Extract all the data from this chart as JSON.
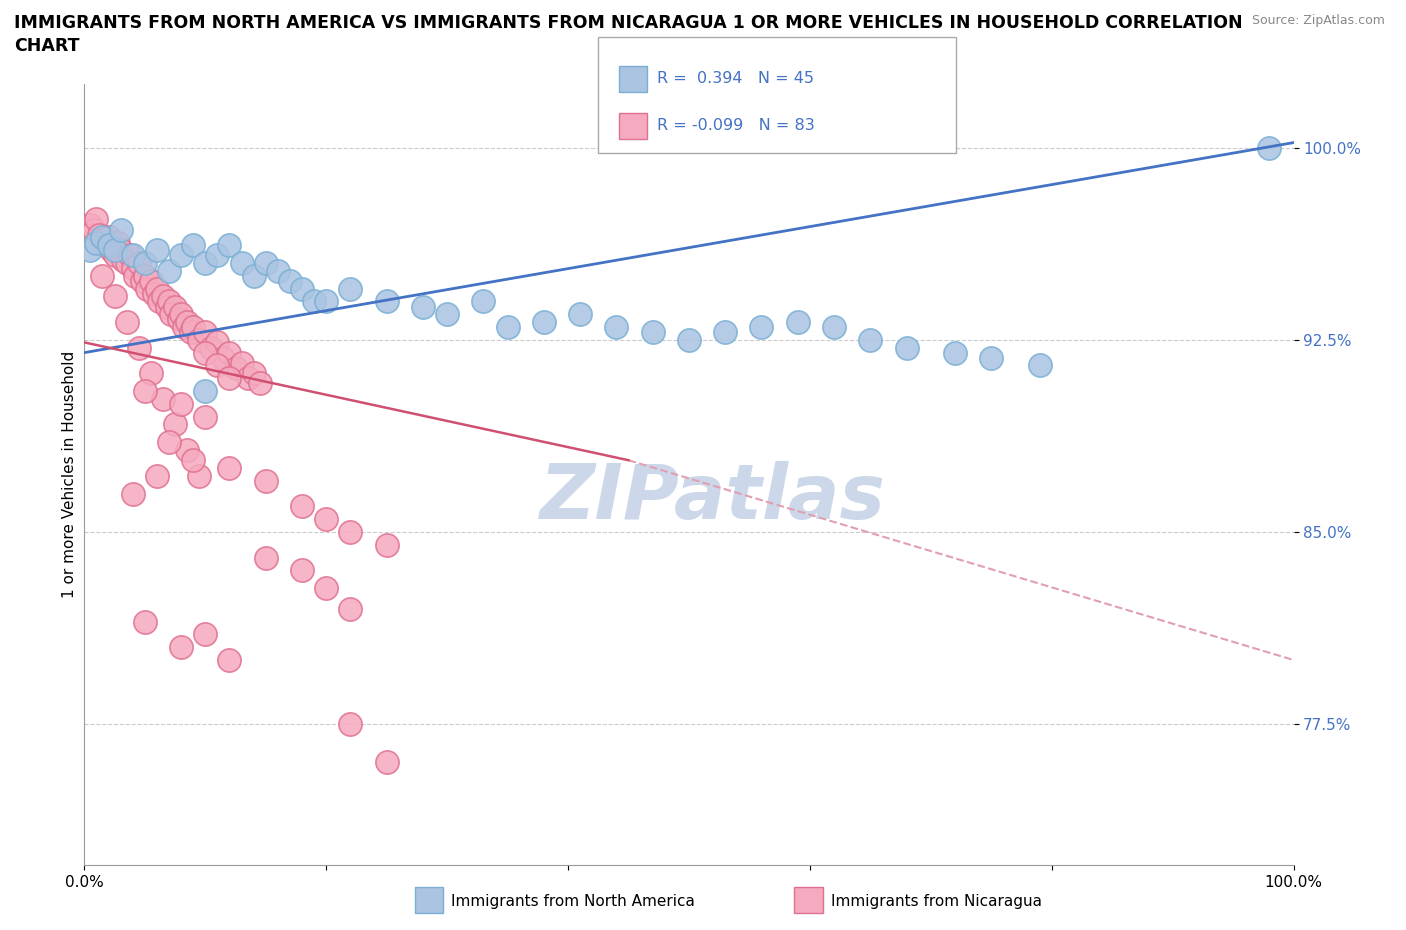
{
  "title_line1": "IMMIGRANTS FROM NORTH AMERICA VS IMMIGRANTS FROM NICARAGUA 1 OR MORE VEHICLES IN HOUSEHOLD CORRELATION",
  "title_line2": "CHART",
  "source_text": "Source: ZipAtlas.com",
  "ylabel": "1 or more Vehicles in Household",
  "ytick_values": [
    0.775,
    0.85,
    0.925,
    1.0
  ],
  "xrange": [
    0.0,
    1.0
  ],
  "yrange": [
    0.72,
    1.025
  ],
  "legend_labels": [
    "Immigrants from North America",
    "Immigrants from Nicaragua"
  ],
  "blue_R": 0.394,
  "blue_N": 45,
  "pink_R": -0.099,
  "pink_N": 83,
  "blue_color": "#aac4e2",
  "pink_color": "#f5aabf",
  "blue_edge": "#7aafd4",
  "pink_edge": "#e07090",
  "trendline_blue": "#4472c4",
  "trendline_pink": "#d05070",
  "trendline_pink_dash": "#e0a0b0",
  "watermark_color": "#ccd8ea",
  "blue_scatter_x": [
    0.005,
    0.01,
    0.015,
    0.02,
    0.025,
    0.03,
    0.04,
    0.05,
    0.06,
    0.07,
    0.08,
    0.09,
    0.1,
    0.11,
    0.12,
    0.13,
    0.14,
    0.15,
    0.16,
    0.17,
    0.18,
    0.19,
    0.2,
    0.22,
    0.25,
    0.28,
    0.3,
    0.33,
    0.35,
    0.38,
    0.41,
    0.44,
    0.47,
    0.5,
    0.53,
    0.56,
    0.59,
    0.62,
    0.65,
    0.68,
    0.72,
    0.75,
    0.79,
    0.98,
    0.1
  ],
  "blue_scatter_y": [
    0.96,
    0.963,
    0.965,
    0.962,
    0.96,
    0.968,
    0.958,
    0.955,
    0.96,
    0.952,
    0.958,
    0.962,
    0.955,
    0.958,
    0.962,
    0.955,
    0.95,
    0.955,
    0.952,
    0.948,
    0.945,
    0.94,
    0.94,
    0.945,
    0.94,
    0.938,
    0.935,
    0.94,
    0.93,
    0.932,
    0.935,
    0.93,
    0.928,
    0.925,
    0.928,
    0.93,
    0.932,
    0.93,
    0.925,
    0.922,
    0.92,
    0.918,
    0.915,
    1.0,
    0.905
  ],
  "pink_scatter_x": [
    0.005,
    0.008,
    0.01,
    0.012,
    0.015,
    0.018,
    0.02,
    0.022,
    0.025,
    0.028,
    0.03,
    0.032,
    0.035,
    0.038,
    0.04,
    0.042,
    0.045,
    0.048,
    0.05,
    0.052,
    0.055,
    0.058,
    0.06,
    0.062,
    0.065,
    0.068,
    0.07,
    0.072,
    0.075,
    0.078,
    0.08,
    0.082,
    0.085,
    0.088,
    0.09,
    0.095,
    0.1,
    0.105,
    0.11,
    0.115,
    0.12,
    0.125,
    0.13,
    0.135,
    0.14,
    0.145,
    0.015,
    0.025,
    0.035,
    0.045,
    0.055,
    0.065,
    0.075,
    0.085,
    0.095,
    0.1,
    0.11,
    0.12,
    0.05,
    0.08,
    0.1,
    0.07,
    0.09,
    0.06,
    0.04,
    0.12,
    0.15,
    0.18,
    0.2,
    0.22,
    0.25,
    0.15,
    0.18,
    0.2,
    0.22,
    0.05,
    0.08,
    0.1,
    0.12,
    0.22,
    0.25
  ],
  "pink_scatter_y": [
    0.97,
    0.968,
    0.972,
    0.966,
    0.964,
    0.962,
    0.965,
    0.96,
    0.958,
    0.963,
    0.96,
    0.956,
    0.955,
    0.958,
    0.953,
    0.95,
    0.955,
    0.948,
    0.95,
    0.945,
    0.948,
    0.943,
    0.945,
    0.94,
    0.942,
    0.938,
    0.94,
    0.935,
    0.938,
    0.933,
    0.935,
    0.93,
    0.932,
    0.928,
    0.93,
    0.925,
    0.928,
    0.922,
    0.924,
    0.918,
    0.92,
    0.914,
    0.916,
    0.91,
    0.912,
    0.908,
    0.95,
    0.942,
    0.932,
    0.922,
    0.912,
    0.902,
    0.892,
    0.882,
    0.872,
    0.92,
    0.915,
    0.91,
    0.905,
    0.9,
    0.895,
    0.885,
    0.878,
    0.872,
    0.865,
    0.875,
    0.87,
    0.86,
    0.855,
    0.85,
    0.845,
    0.84,
    0.835,
    0.828,
    0.82,
    0.815,
    0.805,
    0.81,
    0.8,
    0.775,
    0.76
  ]
}
